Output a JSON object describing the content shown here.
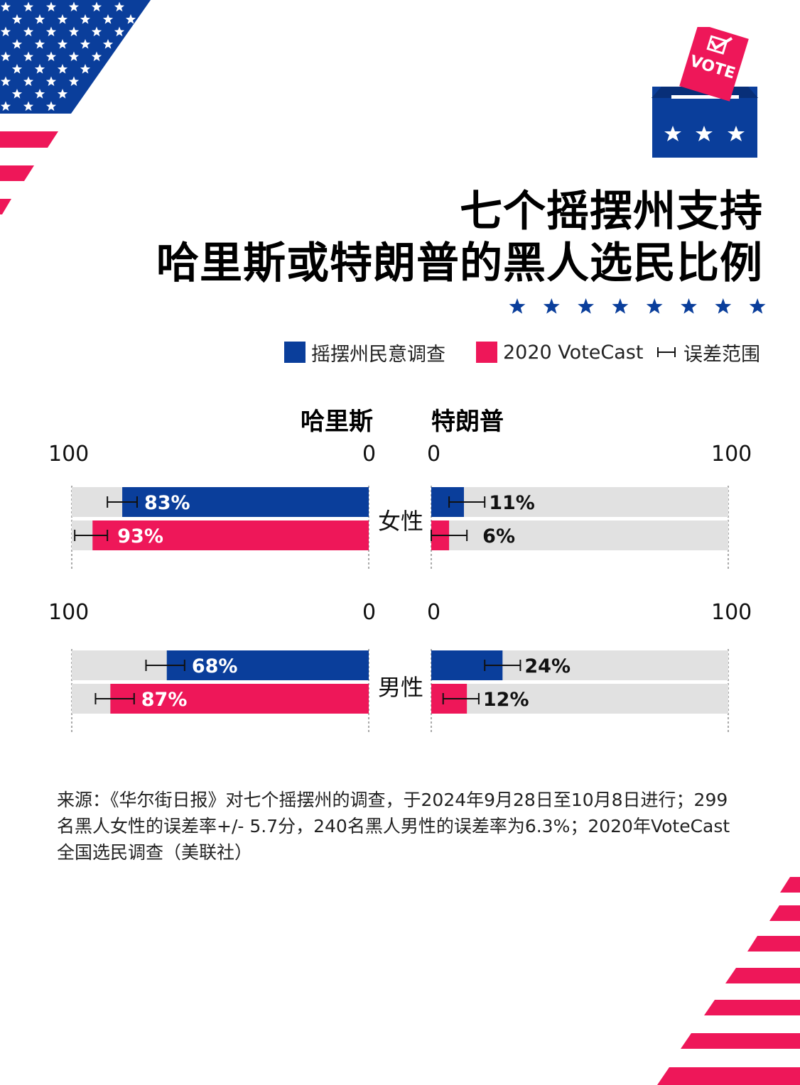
{
  "title": {
    "line1": "七个摇摆州支持",
    "line2": "哈里斯或特朗普的黑人选民比例"
  },
  "legend": {
    "poll_label": "摇摆州民意调查",
    "votecast_label": "2020 VoteCast",
    "error_label": "误差范围"
  },
  "colors": {
    "poll": "#0a3e9b",
    "votecast": "#ee1759",
    "track": "#e1e1e1",
    "flag_blue": "#0a3e9b",
    "flag_red": "#ee1759"
  },
  "columns": {
    "left": "哈里斯",
    "right": "特朗普"
  },
  "axis": {
    "left_max": "100",
    "left_min": "0",
    "right_min": "0",
    "right_max": "100"
  },
  "vote_sticker": "VOTE",
  "chart_data": {
    "type": "bar",
    "orientation": "horizontal, back-to-back",
    "xlim": [
      0,
      100
    ],
    "series": [
      {
        "name": "摇摆州民意调查",
        "color": "#0a3e9b"
      },
      {
        "name": "2020 VoteCast",
        "color": "#ee1759"
      }
    ],
    "groups": [
      {
        "label": "女性",
        "harris": [
          {
            "series": "摇摆州民意调查",
            "value": 83,
            "label": "83%",
            "err_low": 78,
            "err_high": 88
          },
          {
            "series": "2020 VoteCast",
            "value": 93,
            "label": "93%",
            "err_low": 88,
            "err_high": 99
          }
        ],
        "trump": [
          {
            "series": "摇摆州民意调查",
            "value": 11,
            "label": "11%",
            "err_low": 6,
            "err_high": 18
          },
          {
            "series": "2020 VoteCast",
            "value": 6,
            "label": "6%",
            "err_low": 0,
            "err_high": 12
          }
        ]
      },
      {
        "label": "男性",
        "harris": [
          {
            "series": "摇摆州民意调查",
            "value": 68,
            "label": "68%",
            "err_low": 62,
            "err_high": 75
          },
          {
            "series": "2020 VoteCast",
            "value": 87,
            "label": "87%",
            "err_low": 79,
            "err_high": 92
          }
        ],
        "trump": [
          {
            "series": "摇摆州民意调查",
            "value": 24,
            "label": "24%",
            "err_low": 18,
            "err_high": 30
          },
          {
            "series": "2020 VoteCast",
            "value": 12,
            "label": "12%",
            "err_low": 4,
            "err_high": 16
          }
        ]
      }
    ]
  },
  "footnote": {
    "line1": "来源：《华尔街日报》对七个摇摆州的调查，于2024年9月28日至10月8日进行；299",
    "line2": "名黑人女性的误差率+/- 5.7分，240名黑人男性的误差率为6.3%；2020年VoteCast",
    "line3": "全国选民调查（美联社）"
  }
}
